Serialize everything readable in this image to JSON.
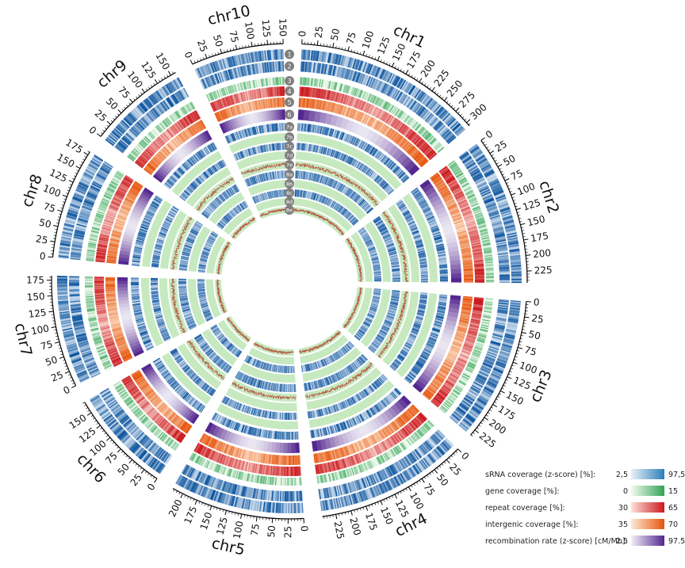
{
  "figure": {
    "chromosomes": [
      {
        "name": "chr1",
        "length": 307,
        "ticks": [
          0,
          25,
          50,
          75,
          100,
          125,
          150,
          175,
          200,
          225,
          250,
          275,
          300
        ]
      },
      {
        "name": "chr2",
        "length": 244,
        "ticks": [
          0,
          25,
          50,
          75,
          100,
          125,
          150,
          175,
          200,
          225
        ]
      },
      {
        "name": "chr3",
        "length": 236,
        "ticks": [
          0,
          25,
          50,
          75,
          100,
          125,
          150,
          175,
          200,
          225
        ]
      },
      {
        "name": "chr4",
        "length": 247,
        "ticks": [
          0,
          25,
          50,
          75,
          100,
          125,
          150,
          175,
          200,
          225
        ]
      },
      {
        "name": "chr5",
        "length": 218,
        "ticks": [
          0,
          25,
          50,
          75,
          100,
          125,
          150,
          175,
          200
        ]
      },
      {
        "name": "chr6",
        "length": 170,
        "ticks": [
          0,
          25,
          50,
          75,
          100,
          125,
          150
        ]
      },
      {
        "name": "chr7",
        "length": 182,
        "ticks": [
          0,
          25,
          50,
          75,
          100,
          125,
          150,
          175
        ]
      },
      {
        "name": "chr8",
        "length": 181,
        "ticks": [
          0,
          25,
          50,
          75,
          100,
          125,
          150,
          175
        ]
      },
      {
        "name": "chr9",
        "length": 159,
        "ticks": [
          0,
          25,
          50,
          75,
          100,
          125,
          150
        ]
      },
      {
        "name": "chr10",
        "length": 150,
        "ticks": [
          0,
          25,
          50,
          75,
          100,
          125,
          150
        ]
      }
    ],
    "track_labels": [
      "1",
      "2",
      "3",
      "4",
      "5",
      "6",
      "7a",
      "7b",
      "7c",
      "7d",
      "7e",
      "8a",
      "8b",
      "8c",
      "8d",
      "8e"
    ],
    "colors": {
      "srna": [
        "#e8f1fa",
        "#08519c"
      ],
      "gene": [
        "#edf8ec",
        "#31a354"
      ],
      "repeat": [
        "#fde0d8",
        "#cb181d"
      ],
      "intergenic": [
        "#fee9d4",
        "#e6550d"
      ],
      "recombination": [
        "#f2f0f7",
        "#54278f"
      ],
      "green_band": "#c7e9c0",
      "histogram_line": "#b5503c",
      "axis": "#000000",
      "badge": "#7f7f7f"
    }
  },
  "legend": [
    {
      "label": "sRNA coverage (z-score) [%]:",
      "min": "2,5",
      "max": "97,5",
      "colors": [
        "#e8f1fa",
        "#2c7fb8"
      ]
    },
    {
      "label": "gene coverage [%]:",
      "min": "0",
      "max": "15",
      "colors": [
        "#f3fbf1",
        "#31a354"
      ]
    },
    {
      "label": "repeat coverage [%]:",
      "min": "30",
      "max": "65",
      "colors": [
        "#fde0d8",
        "#cb181d"
      ]
    },
    {
      "label": "intergenic coverage [%]:",
      "min": "35",
      "max": "70",
      "colors": [
        "#fee9d4",
        "#e6550d"
      ]
    },
    {
      "label": "recombination rate (z-score) [cM/Mb]:",
      "min": "2.5",
      "max": "97.5",
      "colors": [
        "#f2f0f7",
        "#54278f"
      ]
    }
  ]
}
